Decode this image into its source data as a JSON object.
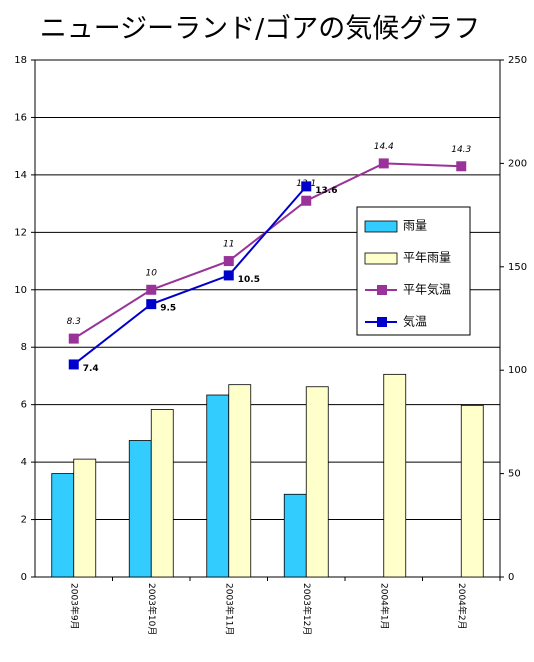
{
  "chart_data": {
    "type": "combo",
    "title": "ニュージーランド/ゴアの気候グラフ",
    "categories": [
      "2003年9月",
      "2003年10月",
      "2003年11月",
      "2003年12月",
      "2004年1月",
      "2004年2月"
    ],
    "series": [
      {
        "name": "雨量",
        "type": "bar",
        "axis": "y2",
        "color": "#33ccff",
        "values": [
          50,
          66,
          88,
          40,
          null,
          null
        ]
      },
      {
        "name": "平年雨量",
        "type": "bar",
        "axis": "y2",
        "color": "#ffffcc",
        "values": [
          57,
          81,
          93,
          92,
          98,
          83
        ]
      },
      {
        "name": "平年気温",
        "type": "line",
        "color": "#993399",
        "values": [
          8.3,
          10,
          11,
          13.1,
          14.4,
          14.3
        ]
      },
      {
        "name": "気温",
        "type": "line",
        "color": "#0000cc",
        "values": [
          7.4,
          9.5,
          10.5,
          13.6,
          null,
          null
        ]
      }
    ],
    "ylim": [
      0,
      18
    ],
    "yticks": [
      0,
      2,
      4,
      6,
      8,
      10,
      12,
      14,
      16,
      18
    ],
    "y2lim": [
      0,
      250
    ],
    "y2ticks": [
      0,
      50,
      100,
      150,
      200,
      250
    ],
    "grid": true
  }
}
